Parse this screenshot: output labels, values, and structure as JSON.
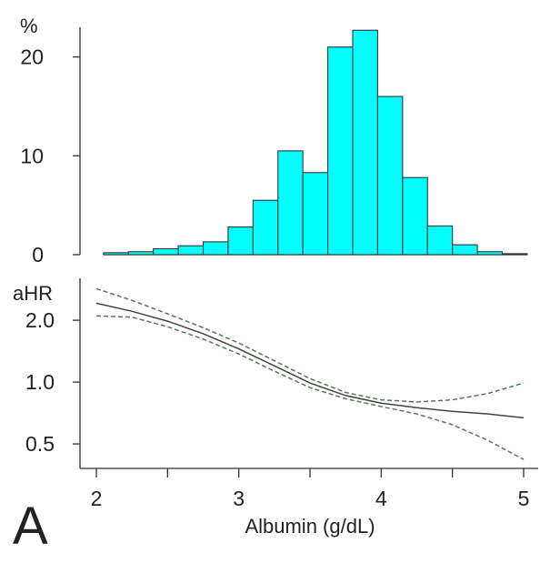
{
  "panel_label": "A",
  "chart_data": [
    {
      "type": "bar",
      "role": "histogram",
      "ylabel": "%",
      "yticks": [
        0,
        10,
        20
      ],
      "ylim": [
        0,
        23
      ],
      "bin_edges": [
        2.05,
        2.225,
        2.4,
        2.575,
        2.75,
        2.925,
        3.1,
        3.275,
        3.45,
        3.625,
        3.8,
        3.975,
        4.15,
        4.325,
        4.5,
        4.675,
        4.85,
        5.025
      ],
      "values": [
        0.2,
        0.3,
        0.6,
        0.9,
        1.3,
        2.8,
        5.5,
        10.5,
        8.3,
        21.0,
        22.7,
        16.0,
        7.8,
        2.9,
        1.0,
        0.3,
        0.1
      ],
      "bar_color": "#00ffff",
      "edge_color": "#333333"
    },
    {
      "type": "line",
      "ylabel": "aHR",
      "xlabel": "Albumin (g/dL)",
      "xticks": [
        2,
        3,
        4,
        5
      ],
      "xlim": [
        2,
        5
      ],
      "scale_y": "log",
      "yticks": [
        0.5,
        1.0,
        2.0
      ],
      "ytick_labels": [
        "0.5",
        "1.0",
        "2.0"
      ],
      "ylim": [
        0.38,
        3.2
      ],
      "series": [
        {
          "style": "solid",
          "color": "#444444",
          "x": [
            2.0,
            2.25,
            2.5,
            2.75,
            3.0,
            3.25,
            3.5,
            3.75,
            4.0,
            4.25,
            4.5,
            4.75,
            5.0
          ],
          "y": [
            2.42,
            2.21,
            1.98,
            1.72,
            1.45,
            1.2,
            0.99,
            0.86,
            0.79,
            0.75,
            0.72,
            0.7,
            0.67
          ]
        },
        {
          "style": "dashed",
          "color": "#557755",
          "x": [
            2.0,
            2.25,
            2.5,
            2.75,
            3.0,
            3.25,
            3.5,
            3.75,
            4.0,
            4.25,
            4.5,
            4.75,
            5.0
          ],
          "y": [
            2.85,
            2.5,
            2.15,
            1.84,
            1.55,
            1.27,
            1.04,
            0.89,
            0.82,
            0.8,
            0.82,
            0.88,
            0.99
          ]
        },
        {
          "style": "dashed",
          "color": "#557755",
          "x": [
            2.0,
            2.25,
            2.5,
            2.75,
            3.0,
            3.25,
            3.5,
            3.75,
            4.0,
            4.25,
            4.5,
            4.75,
            5.0
          ],
          "y": [
            2.1,
            2.07,
            1.86,
            1.62,
            1.37,
            1.13,
            0.94,
            0.83,
            0.76,
            0.7,
            0.62,
            0.52,
            0.42
          ]
        }
      ]
    }
  ]
}
